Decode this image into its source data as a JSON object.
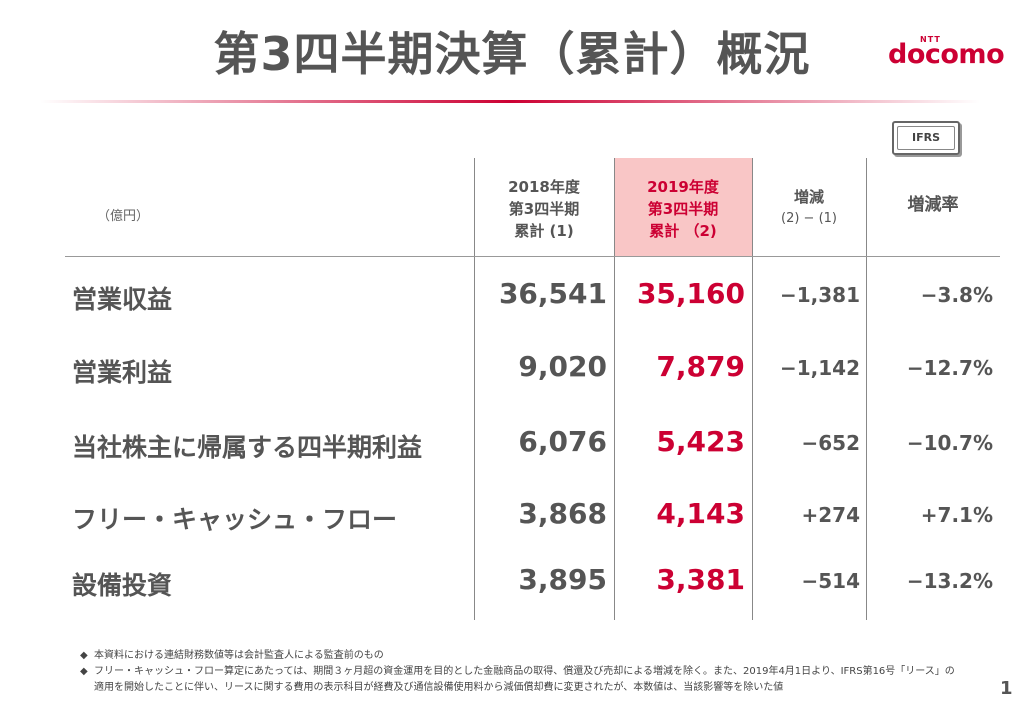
{
  "title": "第3四半期決算（累計）概況",
  "logo": {
    "ntt": "NTT",
    "main": "docomo"
  },
  "badge": "IFRS",
  "header": {
    "unit": "（億円）",
    "col_2018": [
      "2018年度",
      "第3四半期",
      "累計 (1)"
    ],
    "col_2019": [
      "2019年度",
      "第3四半期",
      "累計 （2)"
    ],
    "col_diff": [
      "増減",
      "(2) − (1)"
    ],
    "col_rate": "増減率"
  },
  "rows": [
    {
      "label": "営業収益",
      "v2018": "36,541",
      "v2019": "35,160",
      "diff": "−1,381",
      "rate": "−3.8%"
    },
    {
      "label": "営業利益",
      "v2018": "9,020",
      "v2019": "7,879",
      "diff": "−1,142",
      "rate": "−12.7%"
    },
    {
      "label": "当社株主に帰属する四半期利益",
      "v2018": "6,076",
      "v2019": "5,423",
      "diff": "−652",
      "rate": "−10.7%"
    },
    {
      "label": "フリー・キャッシュ・フロー",
      "v2018": "3,868",
      "v2019": "4,143",
      "diff": "+274",
      "rate": "+7.1%"
    },
    {
      "label": "設備投資",
      "v2018": "3,895",
      "v2019": "3,381",
      "diff": "−514",
      "rate": "−13.2%"
    }
  ],
  "notes": {
    "mark": "◆",
    "note1": "本資料における連結財務数値等は会計監査人による監査前のもの",
    "note2a": "フリー・キャッシュ・フロー算定にあたっては、期間３ヶ月超の資金運用を目的とした金融商品の取得、償還及び売却による増減を除く。また、2019年4月1日より、IFRS第16号「リース」の",
    "note2b": "適用を開始したことに伴い、リースに関する費用の表示科目が経費及び通信設備使用料から減価償却費に変更されたが、本数値は、当該影響等を除いた値"
  },
  "page_number": "1",
  "colors": {
    "accent": "#cc0033",
    "highlight": "#f9c6c6",
    "text": "#555555"
  }
}
